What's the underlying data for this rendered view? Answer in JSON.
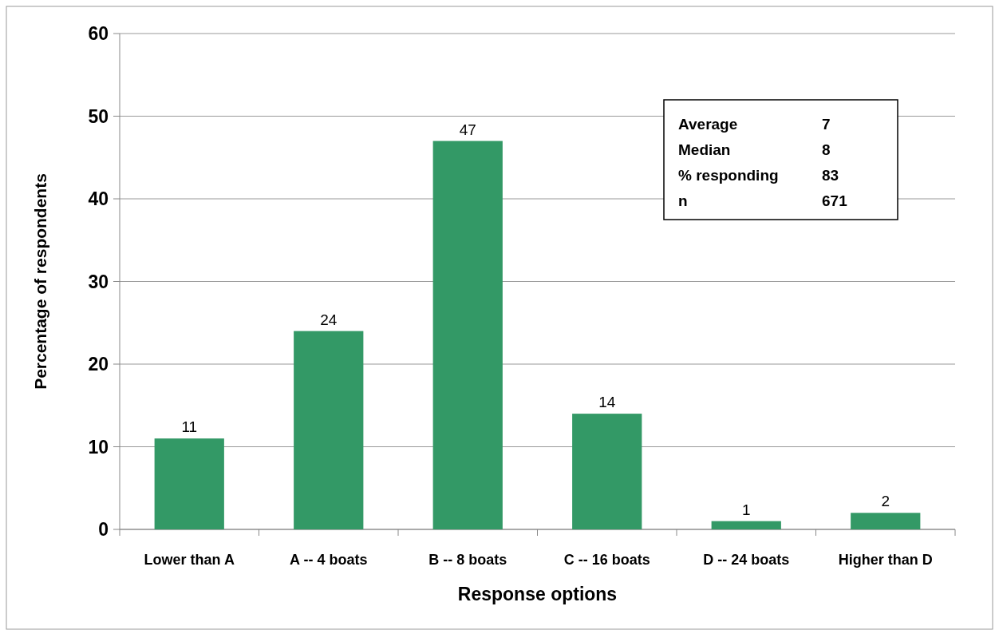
{
  "chart_data": {
    "type": "bar",
    "xlabel": "Response options",
    "ylabel": "Percentage of respondents",
    "categories": [
      "Lower than A",
      "A -- 4 boats",
      "B -- 8 boats",
      "C -- 16 boats",
      "D -- 24 boats",
      "Higher than D"
    ],
    "values": [
      11,
      24,
      47,
      14,
      1,
      2
    ],
    "color": "#339966",
    "ylim": [
      0,
      60
    ],
    "yticks": [
      0,
      10,
      20,
      30,
      40,
      50,
      60
    ],
    "grid": "y",
    "data_labels": true,
    "annotations": [
      "Average",
      "7",
      "Median",
      "8",
      "% responding",
      "83",
      "n",
      "671"
    ]
  }
}
